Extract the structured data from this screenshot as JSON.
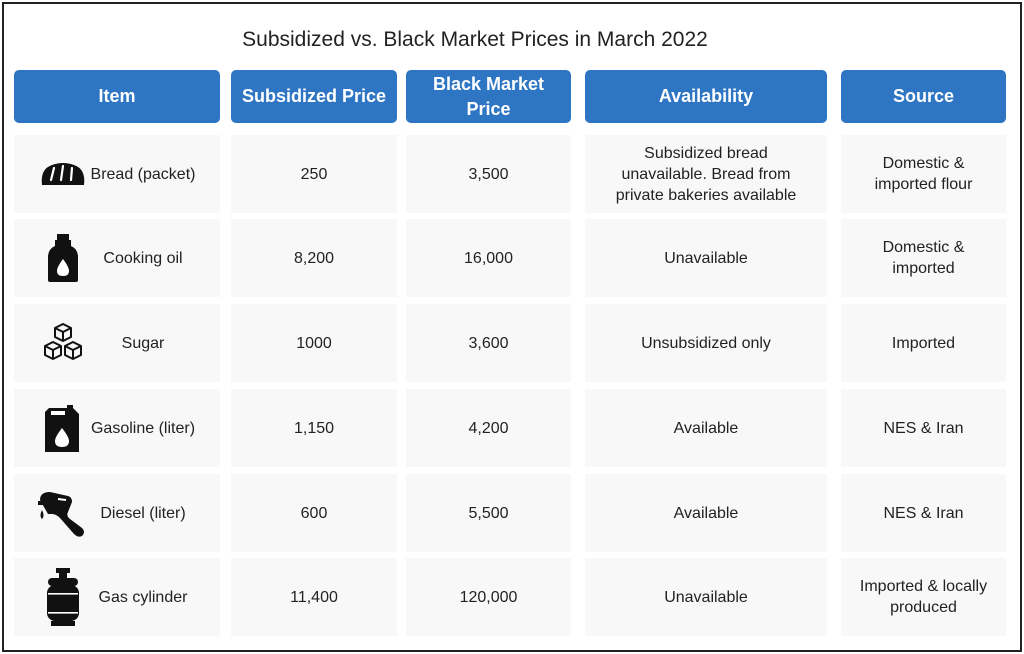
{
  "chart_data": {
    "type": "table",
    "title": "Subsidized vs. Black Market Prices in March 2022",
    "columns": [
      "Item",
      "Subsidized Price",
      "Black Market Price",
      "Availability",
      "Source"
    ],
    "rows": [
      {
        "icon": "bread-icon",
        "item": "Bread (packet)",
        "subsidized": "250",
        "black_market": "3,500",
        "availability": "Subsidized bread unavailable. Bread from private bakeries available",
        "source": "Domestic & imported flour"
      },
      {
        "icon": "oil-bottle-icon",
        "item": "Cooking oil",
        "subsidized": "8,200",
        "black_market": "16,000",
        "availability": "Unavailable",
        "source": "Domestic & imported"
      },
      {
        "icon": "sugar-cubes-icon",
        "item": "Sugar",
        "subsidized": "1000",
        "black_market": "3,600",
        "availability": "Unsubsidized only",
        "source": "Imported"
      },
      {
        "icon": "fuel-canister-icon",
        "item": "Gasoline (liter)",
        "subsidized": "1,150",
        "black_market": "4,200",
        "availability": "Available",
        "source": "NES & Iran"
      },
      {
        "icon": "fuel-nozzle-icon",
        "item": "Diesel (liter)",
        "subsidized": "600",
        "black_market": "5,500",
        "availability": "Available",
        "source": "NES & Iran"
      },
      {
        "icon": "gas-cylinder-icon",
        "item": "Gas cylinder",
        "subsidized": "11,400",
        "black_market": "120,000",
        "availability": "Unavailable",
        "source": "Imported  & locally produced"
      }
    ]
  },
  "colors": {
    "header_bg": "#2e75c3",
    "header_text": "#ffffff",
    "cell_bg": "#f8f8f8",
    "icon": "#111111"
  }
}
